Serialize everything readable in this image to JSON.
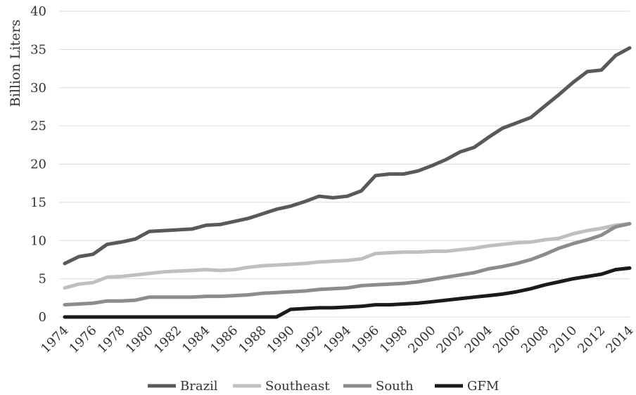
{
  "chart_data": {
    "type": "line",
    "title": "",
    "xlabel": "",
    "ylabel": "Billion Liters",
    "ylim": [
      0,
      40
    ],
    "yticks": [
      "0",
      "5",
      "10",
      "15",
      "20",
      "25",
      "30",
      "35",
      "40"
    ],
    "x": [
      1974,
      1975,
      1976,
      1977,
      1978,
      1979,
      1980,
      1981,
      1982,
      1983,
      1984,
      1985,
      1986,
      1987,
      1988,
      1989,
      1990,
      1991,
      1992,
      1993,
      1994,
      1995,
      1996,
      1997,
      1998,
      1999,
      2000,
      2001,
      2002,
      2003,
      2004,
      2005,
      2006,
      2007,
      2008,
      2009,
      2010,
      2011,
      2012,
      2013,
      2014
    ],
    "xtick_labels": [
      "1974",
      "1976",
      "1978",
      "1980",
      "1982",
      "1984",
      "1986",
      "1988",
      "1990",
      "1992",
      "1994",
      "1996",
      "1998",
      "2000",
      "2002",
      "2004",
      "2006",
      "2008",
      "2010",
      "2012",
      "2014"
    ],
    "grid": true,
    "legend_position": "bottom",
    "series": [
      {
        "name": "Brazil",
        "color": "#595959",
        "values": [
          7.0,
          7.9,
          8.2,
          9.5,
          9.8,
          10.2,
          11.2,
          11.3,
          11.4,
          11.5,
          12.0,
          12.1,
          12.5,
          12.9,
          13.5,
          14.1,
          14.5,
          15.1,
          15.8,
          15.6,
          15.8,
          16.5,
          18.5,
          18.7,
          18.7,
          19.1,
          19.8,
          20.6,
          21.6,
          22.2,
          23.5,
          24.7,
          25.4,
          26.1,
          27.6,
          29.1,
          30.7,
          32.1,
          32.3,
          34.2,
          35.2
        ]
      },
      {
        "name": "Southeast",
        "color": "#bfbfbf",
        "values": [
          3.8,
          4.3,
          4.5,
          5.2,
          5.3,
          5.5,
          5.7,
          5.9,
          6.0,
          6.1,
          6.2,
          6.1,
          6.2,
          6.5,
          6.7,
          6.8,
          6.9,
          7.0,
          7.2,
          7.3,
          7.4,
          7.6,
          8.3,
          8.4,
          8.5,
          8.5,
          8.6,
          8.6,
          8.8,
          9.0,
          9.3,
          9.5,
          9.7,
          9.8,
          10.1,
          10.3,
          10.9,
          11.3,
          11.6,
          12.0,
          12.2
        ]
      },
      {
        "name": "South",
        "color": "#8c8c8c",
        "values": [
          1.6,
          1.7,
          1.8,
          2.1,
          2.1,
          2.2,
          2.6,
          2.6,
          2.6,
          2.6,
          2.7,
          2.7,
          2.8,
          2.9,
          3.1,
          3.2,
          3.3,
          3.4,
          3.6,
          3.7,
          3.8,
          4.1,
          4.2,
          4.3,
          4.4,
          4.6,
          4.9,
          5.2,
          5.5,
          5.8,
          6.3,
          6.6,
          7.0,
          7.5,
          8.2,
          9.0,
          9.6,
          10.1,
          10.7,
          11.8,
          12.2
        ]
      },
      {
        "name": "GFM",
        "color": "#1a1a1a",
        "values": [
          0,
          0,
          0,
          0,
          0,
          0,
          0,
          0,
          0,
          0,
          0,
          0,
          0,
          0,
          0,
          0,
          1.0,
          1.1,
          1.2,
          1.2,
          1.3,
          1.4,
          1.6,
          1.6,
          1.7,
          1.8,
          2.0,
          2.2,
          2.4,
          2.6,
          2.8,
          3.0,
          3.3,
          3.7,
          4.2,
          4.6,
          5.0,
          5.3,
          5.6,
          6.2,
          6.4
        ]
      }
    ]
  }
}
